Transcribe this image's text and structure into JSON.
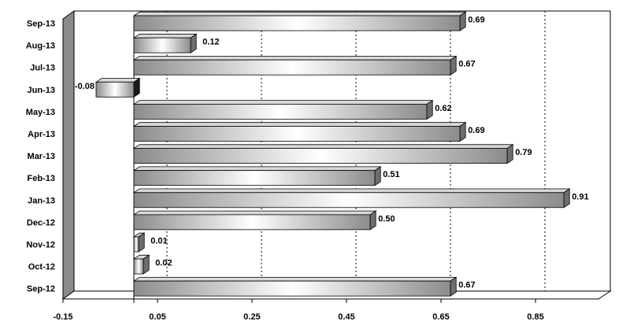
{
  "chart_data": {
    "type": "bar",
    "orientation": "horizontal",
    "title": "",
    "xlabel": "",
    "ylabel": "",
    "categories": [
      "Sep-13",
      "Aug-13",
      "Jul-13",
      "Jun-13",
      "May-13",
      "Apr-13",
      "Mar-13",
      "Feb-13",
      "Jan-13",
      "Dec-12",
      "Nov-12",
      "Oct-12",
      "Sep-12"
    ],
    "values": [
      0.69,
      0.12,
      0.67,
      -0.08,
      0.62,
      0.69,
      0.79,
      0.51,
      0.91,
      0.5,
      0.01,
      0.02,
      0.67
    ],
    "value_labels": [
      "0.69",
      "0.12",
      "0.67",
      "-0.08",
      "0.62",
      "0.69",
      "0.79",
      "0.51",
      "0.91",
      "0.50",
      "0.01",
      "0.02",
      "0.67"
    ],
    "xlim": [
      -0.15,
      1.05
    ],
    "xticks": [
      -0.15,
      0.05,
      0.25,
      0.45,
      0.65,
      0.85
    ],
    "xtick_labels": [
      "-0.15",
      "0.05",
      "0.25",
      "0.45",
      "0.65",
      "0.85"
    ],
    "grid": "vertical dotted",
    "legend": "none",
    "style": "3d",
    "colors": {
      "bar_dark": "#8c8c8c",
      "bar_light": "#ffffff",
      "wall": "#8a8a8a",
      "outline": "#000000"
    }
  }
}
